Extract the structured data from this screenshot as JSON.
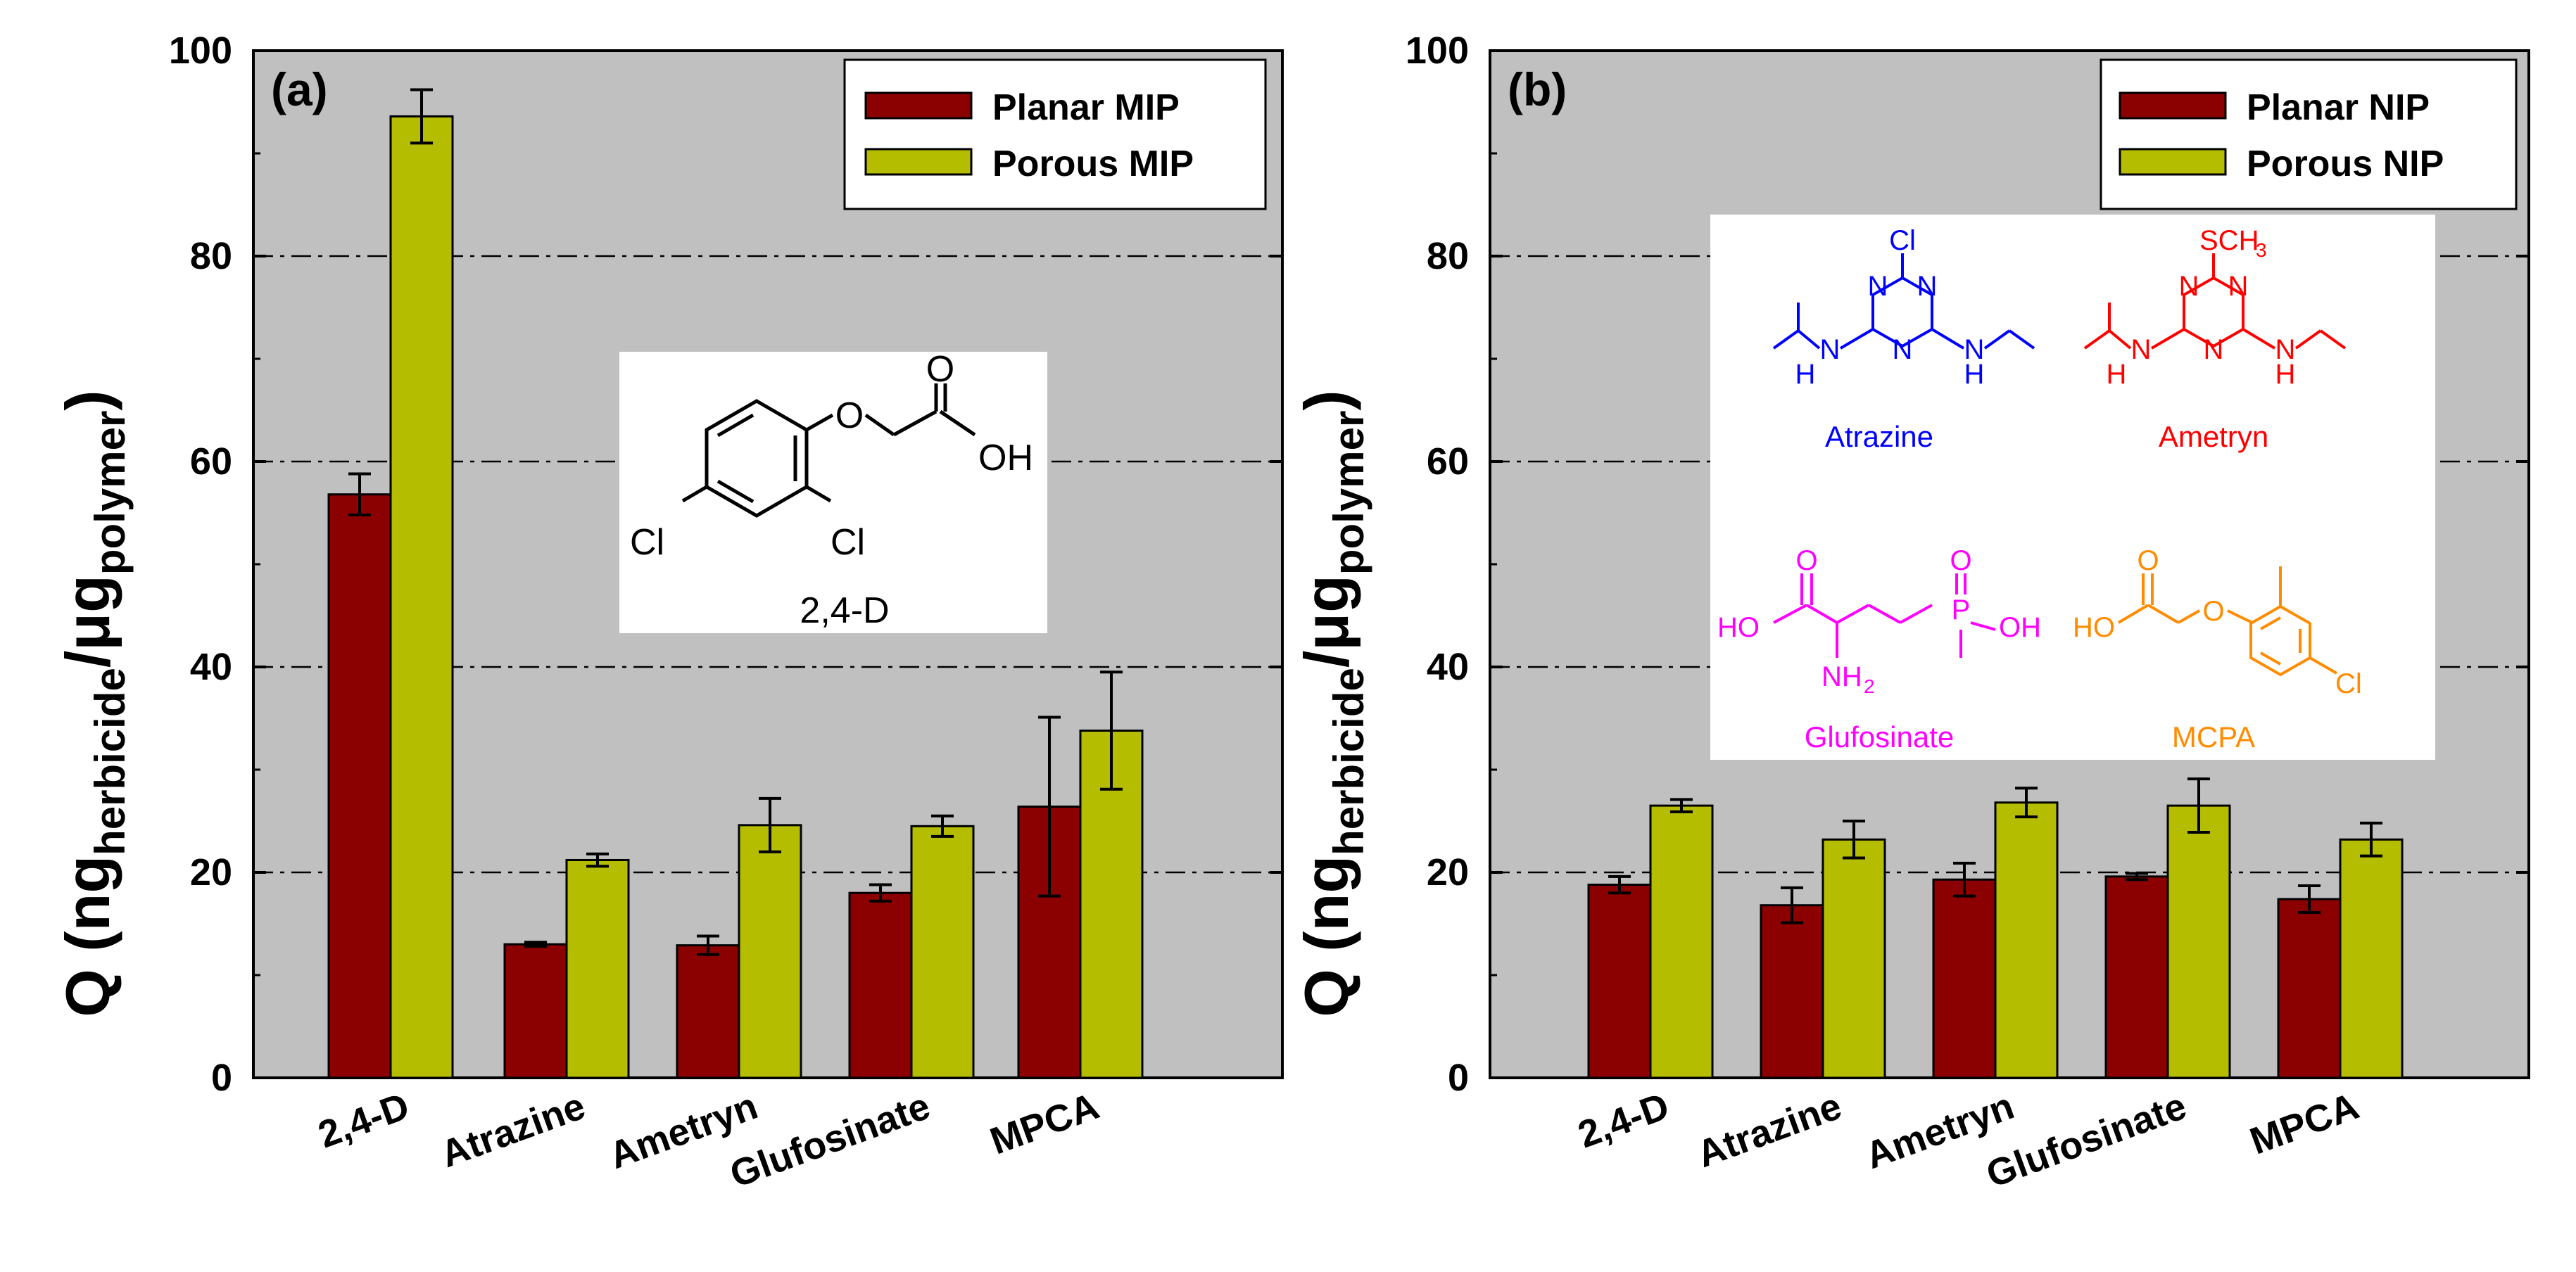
{
  "chart_data": [
    {
      "type": "bar",
      "panel_label": "(a)",
      "ylabel": {
        "main": "Q (ng",
        "sub1": "herbicide",
        "mid": "/μg",
        "sub2": "polymer",
        "end": ")"
      },
      "ylim": [
        0,
        100
      ],
      "yticks": [
        "0",
        "20",
        "40",
        "60",
        "80",
        "100"
      ],
      "categories": [
        "2,4-D",
        "Atrazine",
        "Ametryn",
        "Glufosinate",
        "MPCA"
      ],
      "series": [
        {
          "name": "Planar MIP",
          "color": "#8b0000",
          "values": [
            56.8,
            13.0,
            12.9,
            18.0,
            26.4
          ],
          "errors": [
            2.0,
            0.2,
            0.9,
            0.8,
            8.7
          ]
        },
        {
          "name": "Porous MIP",
          "color": "#b5bd00",
          "values": [
            93.6,
            21.2,
            24.6,
            24.5,
            33.8
          ],
          "errors": [
            2.6,
            0.6,
            2.6,
            1.0,
            5.7
          ]
        }
      ],
      "legend_position": "top-right",
      "grid": "dash-dot horizontal",
      "inset": {
        "compound": "2,4-D",
        "labels": [
          "O",
          "OH",
          "O",
          "Cl",
          "Cl"
        ]
      }
    },
    {
      "type": "bar",
      "panel_label": "(b)",
      "ylabel": {
        "main": "Q (ng",
        "sub1": "herbicide",
        "mid": "/μg",
        "sub2": "polymer",
        "end": ")"
      },
      "ylim": [
        0,
        100
      ],
      "yticks": [
        "0",
        "20",
        "40",
        "60",
        "80",
        "100"
      ],
      "categories": [
        "2,4-D",
        "Atrazine",
        "Ametryn",
        "Glufosinate",
        "MPCA"
      ],
      "series": [
        {
          "name": "Planar NIP",
          "color": "#8b0000",
          "values": [
            18.8,
            16.8,
            19.3,
            19.6,
            17.4
          ],
          "errors": [
            0.8,
            1.7,
            1.6,
            0.3,
            1.3
          ]
        },
        {
          "name": "Porous NIP",
          "color": "#b5bd00",
          "values": [
            26.5,
            23.2,
            26.8,
            26.5,
            23.2
          ],
          "errors": [
            0.6,
            1.8,
            1.4,
            2.6,
            1.6
          ]
        }
      ],
      "legend_position": "top-right",
      "grid": "dash-dot horizontal",
      "inset": {
        "compounds": [
          {
            "name": "Atrazine",
            "color": "#0000ff",
            "labels": [
              "Cl",
              "N",
              "N",
              "N",
              "N",
              "H",
              "N",
              "H"
            ]
          },
          {
            "name": "Ametryn",
            "color": "#ff0000",
            "labels": [
              "SCH",
              "3",
              "N",
              "N",
              "N",
              "N",
              "H",
              "N",
              "H"
            ]
          },
          {
            "name": "Glufosinate",
            "color": "#ff00ff",
            "labels": [
              "O",
              "HO",
              "NH",
              "2",
              "O",
              "P",
              "OH"
            ]
          },
          {
            "name": "MCPA",
            "color": "#ff8c00",
            "labels": [
              "O",
              "HO",
              "O",
              "Cl"
            ]
          }
        ]
      }
    }
  ]
}
